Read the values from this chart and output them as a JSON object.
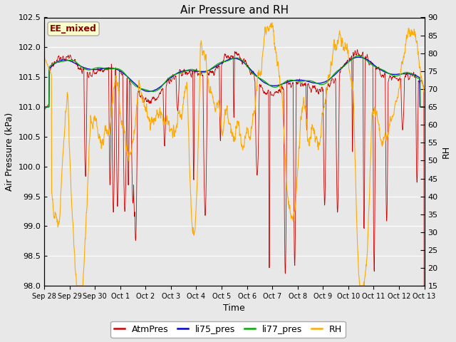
{
  "title": "Air Pressure and RH",
  "xlabel": "Time",
  "ylabel_left": "Air Pressure (kPa)",
  "ylabel_right": "RH",
  "annotation": "EE_mixed",
  "ylim_left": [
    98.0,
    102.5
  ],
  "ylim_right": [
    15,
    90
  ],
  "yticks_left": [
    98.0,
    98.5,
    99.0,
    99.5,
    100.0,
    100.5,
    101.0,
    101.5,
    102.0,
    102.5
  ],
  "yticks_right": [
    15,
    20,
    25,
    30,
    35,
    40,
    45,
    50,
    55,
    60,
    65,
    70,
    75,
    80,
    85,
    90
  ],
  "xtick_labels": [
    "Sep 28",
    "Sep 29",
    "Sep 30",
    "Oct 1",
    "Oct 2",
    "Oct 3",
    "Oct 4",
    "Oct 5",
    "Oct 6",
    "Oct 7",
    "Oct 8",
    "Oct 9",
    "Oct 10",
    "Oct 11",
    "Oct 12",
    "Oct 13"
  ],
  "legend_entries": [
    "AtmPres",
    "li75_pres",
    "li77_pres",
    "RH"
  ],
  "colors": {
    "AtmPres": "#cc0000",
    "li75_pres": "#0000cc",
    "li77_pres": "#00aa00",
    "RH": "#ffaa00"
  },
  "bg_color": "#e8e8e8",
  "plot_bg": "#e8e8e8",
  "grid_color": "#ffffff",
  "annotation_bg": "#ffffcc",
  "annotation_border": "#aaaaaa",
  "annotation_text_color": "#880000",
  "title_fontsize": 11,
  "axis_fontsize": 9,
  "tick_fontsize": 8,
  "legend_fontsize": 9
}
